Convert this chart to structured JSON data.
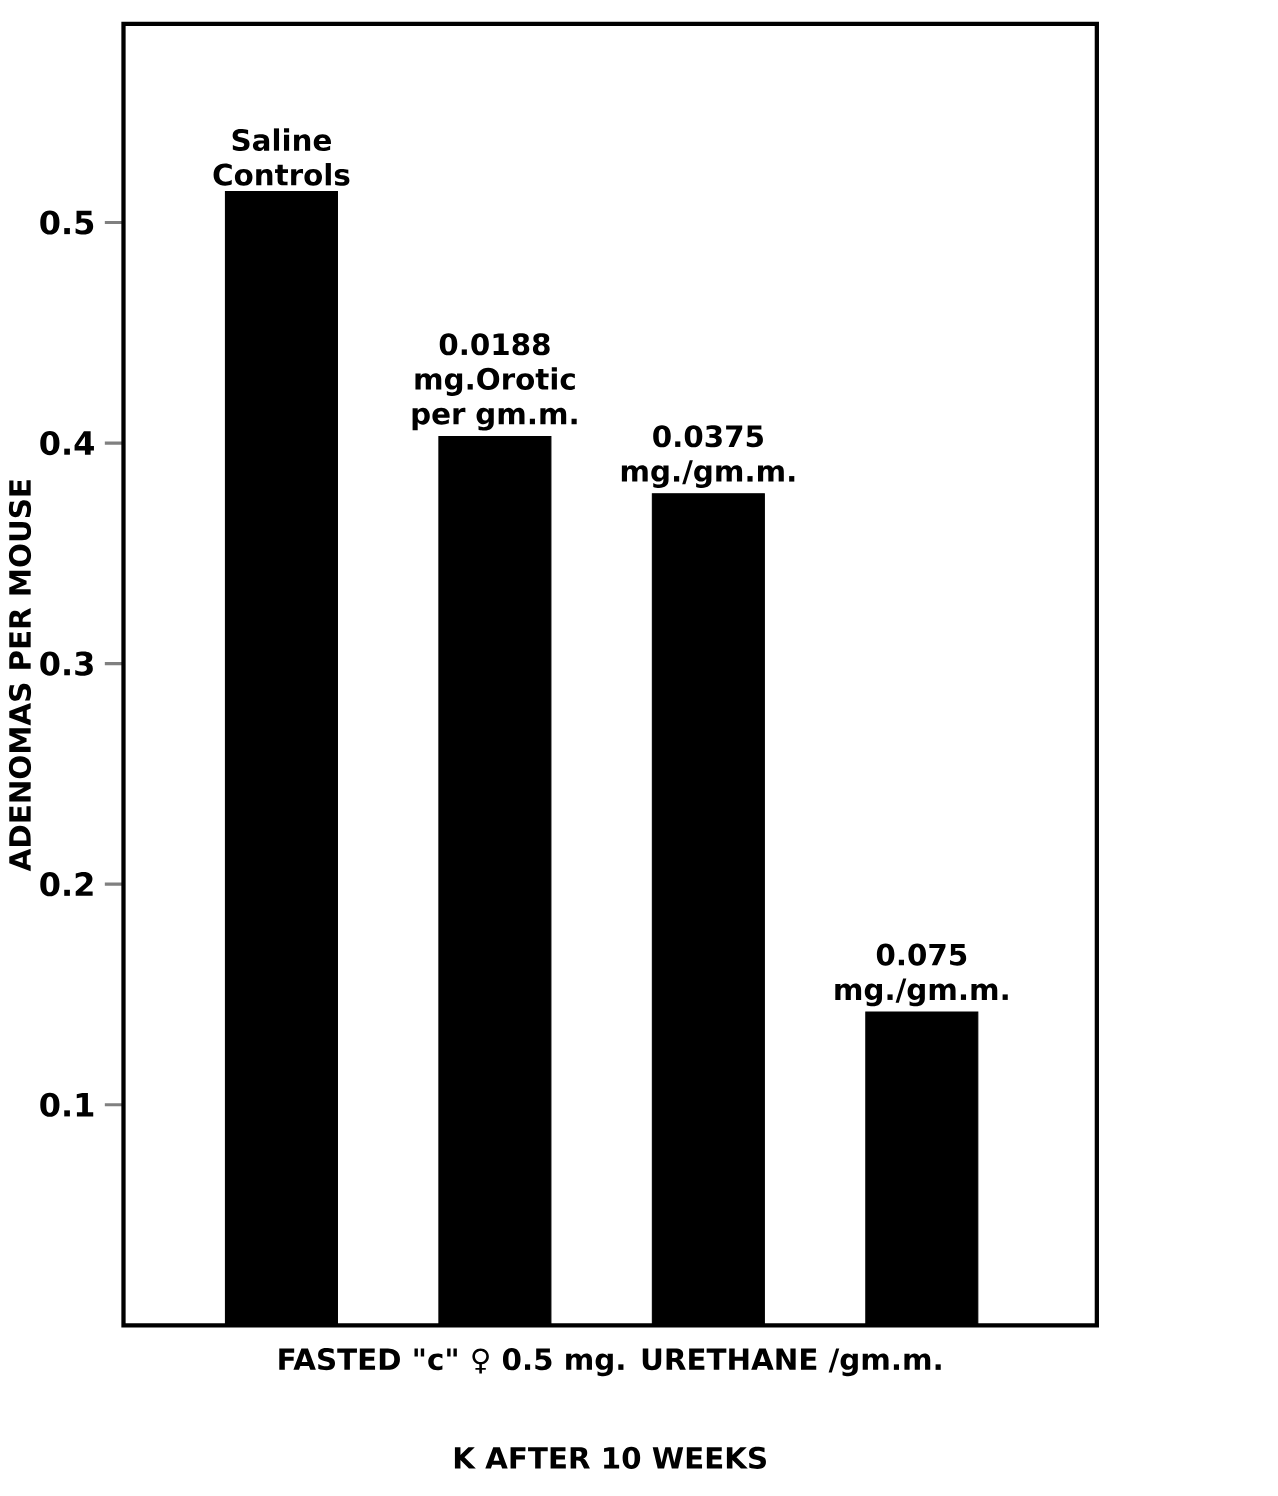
{
  "chart_data": {
    "type": "bar",
    "categories": [
      "Saline Controls",
      "0.0188 mg.Orotic per gm.m.",
      "0.0375 mg./gm.m.",
      "0.075 mg./gm.m."
    ],
    "values": [
      0.514,
      0.403,
      0.377,
      0.142
    ],
    "color": "#000000",
    "ylim": [
      0,
      0.59
    ],
    "yticks": [
      0.1,
      0.2,
      0.3,
      0.4,
      0.5
    ],
    "ylabel": "ADENOMAS PER MOUSE",
    "xlabel": "FASTED \"c\" ♀  0.5 mg. URETHANE /gm.m.",
    "annotations": [
      "K  AFTER 10 WEEKS"
    ]
  }
}
